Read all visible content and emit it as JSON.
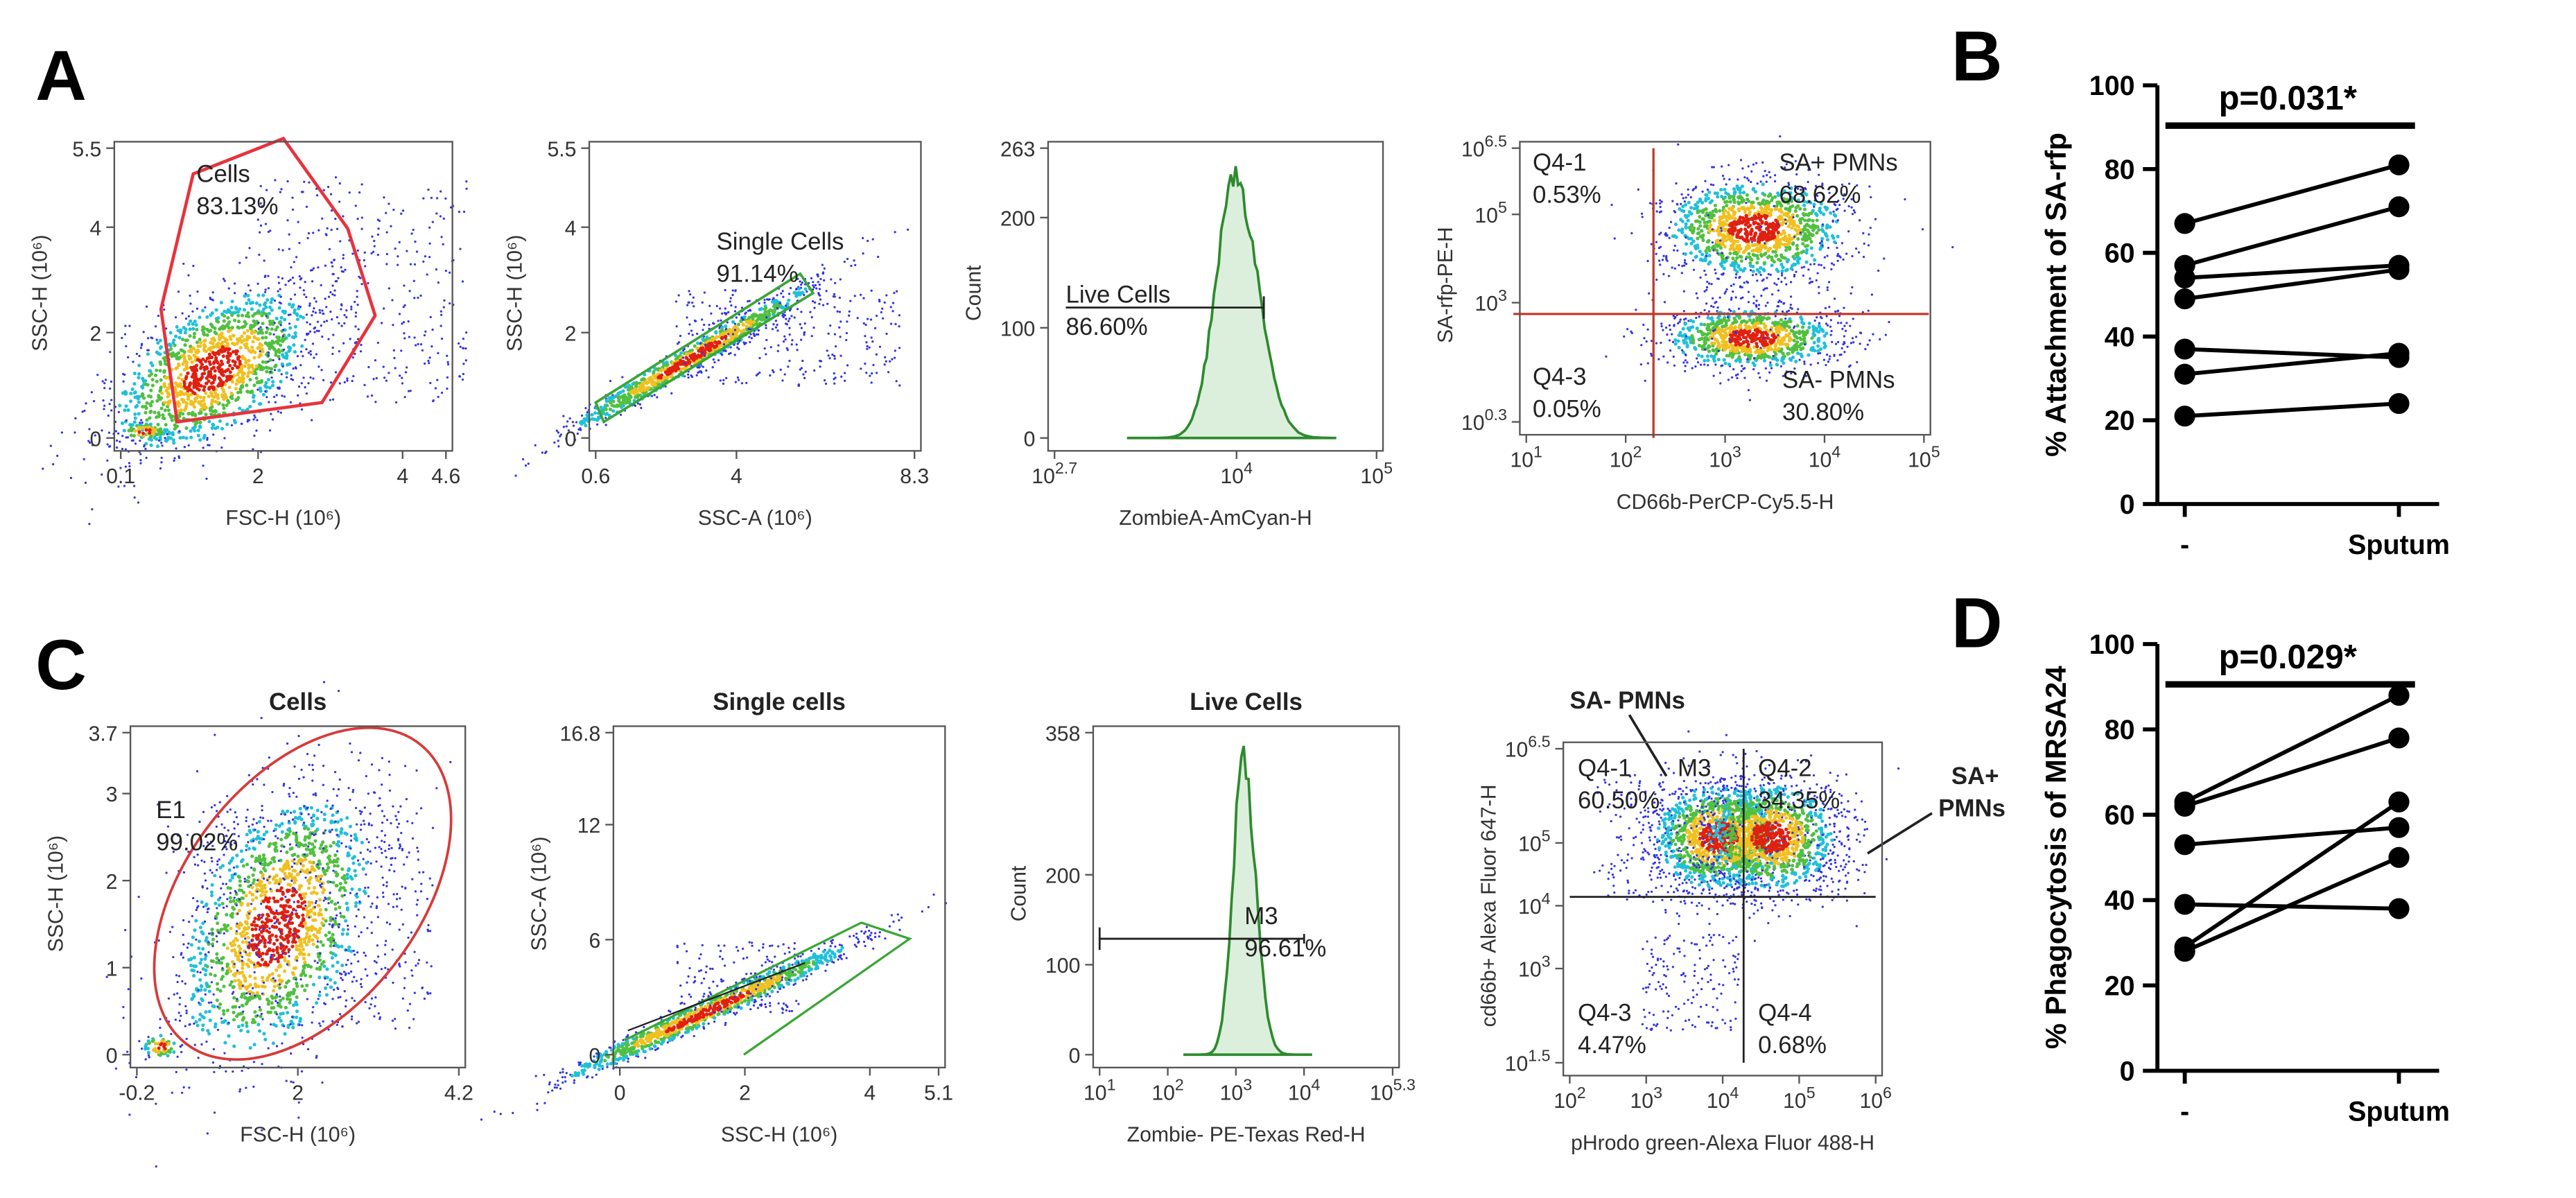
{
  "panel_labels": [
    "A",
    "B",
    "C",
    "D"
  ],
  "chart_data": [
    {
      "type": "scatter",
      "x_label": "FSC-H  (10⁶)",
      "y_label": "SSC-H (10⁶)",
      "xlim": [
        0.1,
        4.6
      ],
      "xticks": [
        0.1,
        2,
        4,
        4.6
      ],
      "ylim": [
        0,
        5.5
      ],
      "yticks": [
        0,
        2,
        4,
        5.5
      ],
      "gates": [
        {
          "name": "Cells",
          "percent": "83.13%",
          "color": "#e8323c"
        }
      ]
    },
    {
      "type": "scatter",
      "x_label": "SSC-A  (10⁶)",
      "y_label": "SSC-H (10⁶)",
      "xlim": [
        0.6,
        8.3
      ],
      "xticks": [
        0.6,
        4,
        8.3
      ],
      "ylim": [
        0,
        5.5
      ],
      "yticks": [
        0,
        2,
        4,
        5.5
      ],
      "gates": [
        {
          "name": "Single Cells",
          "percent": "91.14%",
          "color": "#3aa635"
        }
      ]
    },
    {
      "type": "histogram",
      "x_label": "ZombieA-AmCyan-H",
      "y_label": "Count",
      "xscale": "log",
      "color": "#2e8b2e",
      "xlim": [
        501.187,
        100000
      ],
      "xticks": [
        {
          "value": 501.187,
          "label": "10",
          "power": "2.7"
        },
        {
          "value": 10000,
          "label": "10",
          "power": "4"
        },
        {
          "value": 100000,
          "label": "10",
          "power": "5"
        }
      ],
      "ylim": [
        0,
        263
      ],
      "yticks": [
        0,
        100,
        200,
        263
      ],
      "gates": [
        {
          "name": "Live Cells",
          "percent": "86.60%",
          "color": "#222222"
        }
      ]
    },
    {
      "type": "scatter",
      "x_label": "CD66b-PerCP-Cy5.5-H",
      "y_label": "SA-rfp-PE-H",
      "xscale": "log",
      "yscale": "log",
      "xlim": [
        10,
        100000
      ],
      "xticks": [
        {
          "value": 10,
          "label": "10",
          "power": "1"
        },
        {
          "value": 100,
          "label": "10",
          "power": "2"
        },
        {
          "value": 1000,
          "label": "10",
          "power": "3"
        },
        {
          "value": 10000,
          "label": "10",
          "power": "4"
        },
        {
          "value": 100000,
          "label": "10",
          "power": "5"
        }
      ],
      "ylim": [
        1.9953,
        3162277.66
      ],
      "yticks": [
        {
          "value": 1.9953,
          "label": "10",
          "power": "0.3"
        },
        {
          "value": 1000,
          "label": "10",
          "power": "3"
        },
        {
          "value": 100000,
          "label": "10",
          "power": "5"
        },
        {
          "value": 3162277.66,
          "label": "10",
          "power": "6.5"
        }
      ],
      "gates": [
        {
          "name": "Q4-1",
          "percent": "0.53%",
          "color": "#222222"
        },
        {
          "name": "SA+ PMNs",
          "percent": "68.62%",
          "color": "#3b3bd6"
        },
        {
          "name": "Q4-3",
          "percent": "0.05%",
          "color": "#222222"
        },
        {
          "name": "SA- PMNs",
          "percent": "30.80%",
          "color": "#c8423c"
        }
      ]
    },
    {
      "type": "scatter",
      "title": "Cells",
      "title_color": "#e8201c",
      "x_label": "FSC-H  (10⁶)",
      "y_label": "SSC-H  (10⁶)",
      "xlim": [
        -0.2,
        4.2
      ],
      "xticks": [
        -0.2,
        2,
        4.2
      ],
      "ylim": [
        0,
        3.7
      ],
      "yticks": [
        0,
        1,
        2,
        3,
        3.7
      ],
      "gates": [
        {
          "name": "E1",
          "percent": "99.02%",
          "color": "#d83a3a"
        }
      ]
    },
    {
      "type": "scatter",
      "title": "Single cells",
      "title_color": "#2ab04a",
      "x_label": "SSC-H  (10⁶)",
      "y_label": "SSC-A  (10⁶)",
      "xlim": [
        0,
        5.1
      ],
      "xticks": [
        0,
        2,
        4,
        5.1
      ],
      "ylim": [
        0,
        16.8
      ],
      "yticks": [
        0,
        6,
        12,
        16.8
      ]
    },
    {
      "type": "histogram",
      "title": "Live Cells",
      "title_color": "#111111",
      "x_label": "Zombie- PE-Texas Red-H",
      "y_label": "Count",
      "xscale": "log",
      "color": "#2e8b2e",
      "xlim": [
        10,
        199526.23
      ],
      "xticks": [
        {
          "value": 10,
          "label": "10",
          "power": "1"
        },
        {
          "value": 100,
          "label": "10",
          "power": "2"
        },
        {
          "value": 1000,
          "label": "10",
          "power": "3"
        },
        {
          "value": 10000,
          "label": "10",
          "power": "4"
        },
        {
          "value": 199526.23,
          "label": "10",
          "power": "5.3"
        }
      ],
      "ylim": [
        0,
        358
      ],
      "yticks": [
        0,
        100,
        200,
        358
      ],
      "gates": [
        {
          "name": "M3",
          "percent": "96.61%",
          "color": "#222222"
        }
      ]
    },
    {
      "type": "scatter",
      "x_label": "pHrodo green-Alexa Fluor 488-H",
      "y_label": "cd66b+ Alexa Fluor 647-H",
      "xscale": "log",
      "yscale": "log",
      "xlim": [
        100,
        1000000
      ],
      "xticks": [
        {
          "value": 100,
          "label": "10",
          "power": "2"
        },
        {
          "value": 1000,
          "label": "10",
          "power": "3"
        },
        {
          "value": 10000,
          "label": "10",
          "power": "4"
        },
        {
          "value": 100000,
          "label": "10",
          "power": "5"
        },
        {
          "value": 1000000,
          "label": "10",
          "power": "6"
        }
      ],
      "ylim": [
        31.623,
        3162277.66
      ],
      "yticks": [
        {
          "value": 31.623,
          "label": "10",
          "power": "1.5"
        },
        {
          "value": 1000,
          "label": "10",
          "power": "3"
        },
        {
          "value": 10000,
          "label": "10",
          "power": "4"
        },
        {
          "value": 100000,
          "label": "10",
          "power": "5"
        },
        {
          "value": 3162277.66,
          "label": "10",
          "power": "6.5"
        }
      ],
      "gates": [
        {
          "name": "Q4-1",
          "percent": "60.50%",
          "color": "#222222"
        },
        {
          "name": "Q4-2",
          "percent": "34.35%",
          "color": "#222222"
        },
        {
          "name": "Q4-3",
          "percent": "4.47%",
          "color": "#222222"
        },
        {
          "name": "Q4-4",
          "percent": "0.68%",
          "color": "#222222"
        },
        {
          "name": "M3",
          "color": "#222222"
        }
      ],
      "annotations": [
        {
          "lines": [
            "SA- PMNs"
          ]
        },
        {
          "lines": [
            "SA+",
            "PMNs"
          ]
        }
      ]
    },
    {
      "type": "line",
      "y_label": "% Attachment of SA-rfp",
      "annotation": "p=0.031*",
      "categories": [
        "-",
        "Sputum"
      ],
      "color": "#000000",
      "ylim": [
        0,
        100
      ],
      "yticks": [
        0,
        20,
        40,
        60,
        80,
        100
      ],
      "series": [
        {
          "values": [
            67,
            81
          ]
        },
        {
          "values": [
            57,
            71
          ]
        },
        {
          "values": [
            54,
            57
          ]
        },
        {
          "values": [
            49,
            56
          ]
        },
        {
          "values": [
            37,
            35
          ]
        },
        {
          "values": [
            31,
            36
          ]
        },
        {
          "values": [
            21,
            24
          ]
        }
      ]
    },
    {
      "type": "line",
      "y_label": "% Phagocytosis of MRSA24",
      "annotation": "p=0.029*",
      "categories": [
        "-",
        "Sputum"
      ],
      "color": "#000000",
      "ylim": [
        0,
        100
      ],
      "yticks": [
        0,
        20,
        40,
        60,
        80,
        100
      ],
      "series": [
        {
          "values": [
            63,
            88
          ]
        },
        {
          "values": [
            62,
            78
          ]
        },
        {
          "values": [
            53,
            57
          ]
        },
        {
          "values": [
            39,
            38
          ]
        },
        {
          "values": [
            29,
            63
          ]
        },
        {
          "values": [
            28,
            50
          ]
        }
      ]
    }
  ]
}
